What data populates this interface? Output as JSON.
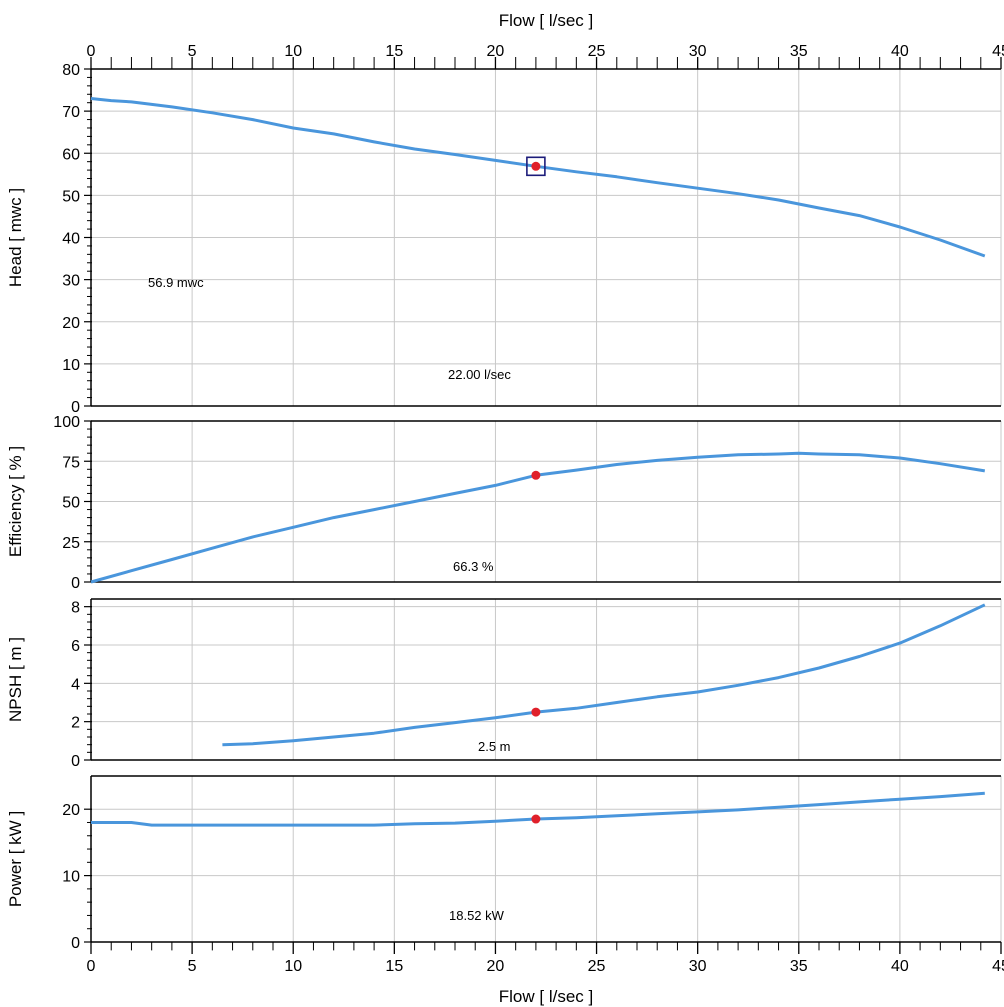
{
  "colors": {
    "curve": "#4a96dc",
    "point": "#e0202a",
    "marker_box": "#1c1c7a",
    "grid": "#c8c8c8",
    "frame": "#000000"
  },
  "chart_data": [
    {
      "type": "line",
      "panel": "head",
      "top_title": "Flow [ l/sec ]",
      "ylabel": "Head [ mwc ]",
      "x_ticks": [
        0,
        5,
        10,
        15,
        20,
        25,
        30,
        35,
        40,
        45
      ],
      "y_ticks": [
        0,
        10,
        20,
        30,
        40,
        50,
        60,
        70,
        80
      ],
      "xlim": [
        0,
        45
      ],
      "ylim": [
        0,
        80
      ],
      "series": [
        {
          "x": [
            0,
            1,
            2,
            4,
            6,
            8,
            10,
            12,
            14,
            16,
            18,
            20,
            22,
            24,
            26,
            28,
            30,
            32,
            34,
            36,
            38,
            40,
            42,
            44.2
          ],
          "y": [
            73.0,
            72.5,
            72.2,
            71.0,
            69.6,
            68.0,
            66.0,
            64.6,
            62.7,
            61.0,
            59.7,
            58.3,
            56.9,
            55.6,
            54.4,
            53.0,
            51.7,
            50.4,
            48.9,
            47.0,
            45.2,
            42.5,
            39.4,
            35.6
          ]
        }
      ],
      "operating_point": {
        "x": 22.0,
        "y": 56.9
      },
      "annotations": [
        "56.9 mwc",
        "22.00 l/sec"
      ]
    },
    {
      "type": "line",
      "panel": "efficiency",
      "ylabel": "Efficiency [ % ]",
      "x_ticks": [
        0,
        5,
        10,
        15,
        20,
        25,
        30,
        35,
        40,
        45
      ],
      "y_ticks": [
        0,
        25,
        50,
        75,
        100
      ],
      "xlim": [
        0,
        45
      ],
      "ylim": [
        0,
        100
      ],
      "series": [
        {
          "x": [
            0,
            2,
            4,
            6,
            8,
            10,
            12,
            14,
            16,
            18,
            20,
            22,
            24,
            26,
            28,
            30,
            32,
            34,
            35,
            36,
            38,
            40,
            42,
            44.2
          ],
          "y": [
            0,
            7,
            14,
            21,
            28,
            34,
            40,
            45,
            50,
            55,
            60,
            66.3,
            69.5,
            73,
            75.5,
            77.5,
            79,
            79.5,
            80,
            79.5,
            79,
            77,
            73.5,
            69
          ]
        }
      ],
      "operating_point": {
        "x": 22.0,
        "y": 66.3
      },
      "annotations": [
        "66.3 %"
      ]
    },
    {
      "type": "line",
      "panel": "npsh",
      "ylabel": "NPSH [ m ]",
      "x_ticks": [
        0,
        5,
        10,
        15,
        20,
        25,
        30,
        35,
        40,
        45
      ],
      "y_ticks": [
        0,
        2,
        4,
        6,
        8
      ],
      "xlim": [
        0,
        45
      ],
      "ylim": [
        0,
        8.4
      ],
      "series": [
        {
          "x": [
            6.5,
            8,
            10,
            12,
            14,
            16,
            18,
            20,
            22,
            24,
            26,
            28,
            30,
            32,
            34,
            36,
            38,
            40,
            42,
            44.2
          ],
          "y": [
            0.8,
            0.85,
            1.0,
            1.2,
            1.4,
            1.7,
            1.95,
            2.2,
            2.5,
            2.7,
            3.0,
            3.3,
            3.55,
            3.9,
            4.3,
            4.8,
            5.4,
            6.1,
            7.0,
            8.1
          ]
        }
      ],
      "operating_point": {
        "x": 22.0,
        "y": 2.5
      },
      "annotations": [
        "2.5 m"
      ]
    },
    {
      "type": "line",
      "panel": "power",
      "ylabel": "Power [ kW ]",
      "xlabel": "Flow [ l/sec ]",
      "x_ticks": [
        0,
        5,
        10,
        15,
        20,
        25,
        30,
        35,
        40,
        45
      ],
      "y_ticks": [
        0,
        10,
        20
      ],
      "xlim": [
        0,
        45
      ],
      "ylim": [
        0,
        25
      ],
      "series": [
        {
          "x": [
            0,
            2,
            3,
            6,
            10,
            14,
            16,
            18,
            20,
            22,
            24,
            26,
            28,
            30,
            32,
            34,
            36,
            38,
            40,
            42,
            44.2
          ],
          "y": [
            18.0,
            18.0,
            17.6,
            17.6,
            17.6,
            17.6,
            17.8,
            17.9,
            18.2,
            18.52,
            18.7,
            19.0,
            19.3,
            19.6,
            19.9,
            20.3,
            20.7,
            21.1,
            21.5,
            21.9,
            22.4
          ]
        }
      ],
      "operating_point": {
        "x": 22.0,
        "y": 18.52
      },
      "annotations": [
        "18.52 kW"
      ]
    }
  ]
}
